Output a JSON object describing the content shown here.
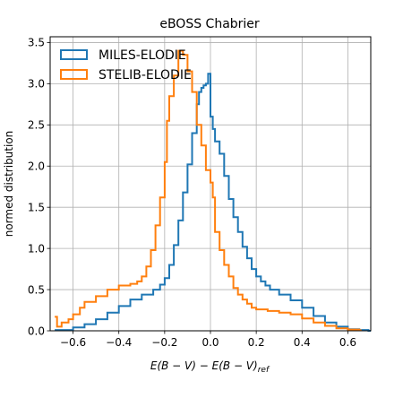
{
  "chart_data": {
    "type": "line",
    "title": "eBOSS Chabrier",
    "xlabel": "E(B − V) − E(B − V)",
    "xlabel_sub": "ref",
    "ylabel": "normed distribution",
    "xlim": [
      -0.7,
      0.7
    ],
    "ylim": [
      0,
      3.57
    ],
    "xticks": [
      -0.6,
      -0.4,
      -0.2,
      0.0,
      0.2,
      0.4,
      0.6
    ],
    "xtick_labels": [
      "−0.6",
      "−0.4",
      "−0.2",
      "0.0",
      "0.2",
      "0.4",
      "0.6"
    ],
    "yticks": [
      0.0,
      0.5,
      1.0,
      1.5,
      2.0,
      2.5,
      3.0,
      3.5
    ],
    "ytick_labels": [
      "0.0",
      "0.5",
      "1.0",
      "1.5",
      "2.0",
      "2.5",
      "3.0",
      "3.5"
    ],
    "grid": true,
    "legend_position": "top-left",
    "drawstyle": "steps",
    "series": [
      {
        "name": "MILES-ELODIE",
        "color": "#1f77b4",
        "x": [
          -0.68,
          -0.6,
          -0.55,
          -0.5,
          -0.45,
          -0.4,
          -0.35,
          -0.3,
          -0.25,
          -0.22,
          -0.2,
          -0.18,
          -0.16,
          -0.14,
          -0.12,
          -0.1,
          -0.08,
          -0.06,
          -0.05,
          -0.04,
          -0.03,
          -0.02,
          -0.01,
          0.0,
          0.01,
          0.02,
          0.04,
          0.06,
          0.08,
          0.1,
          0.12,
          0.14,
          0.16,
          0.18,
          0.2,
          0.22,
          0.24,
          0.26,
          0.3,
          0.35,
          0.4,
          0.45,
          0.5,
          0.55,
          0.6,
          0.65,
          0.69
        ],
        "y": [
          0.01,
          0.04,
          0.08,
          0.14,
          0.22,
          0.3,
          0.38,
          0.44,
          0.5,
          0.56,
          0.64,
          0.8,
          1.04,
          1.34,
          1.68,
          2.02,
          2.4,
          2.75,
          2.9,
          2.95,
          2.98,
          3.0,
          3.12,
          2.6,
          2.45,
          2.3,
          2.15,
          1.88,
          1.6,
          1.38,
          1.2,
          1.02,
          0.88,
          0.75,
          0.66,
          0.6,
          0.55,
          0.5,
          0.44,
          0.37,
          0.28,
          0.18,
          0.1,
          0.05,
          0.02,
          0.01,
          0.0
        ]
      },
      {
        "name": "STELIB-ELODIE",
        "color": "#ff7f0e",
        "x": [
          -0.68,
          -0.67,
          -0.65,
          -0.62,
          -0.6,
          -0.57,
          -0.55,
          -0.5,
          -0.45,
          -0.4,
          -0.35,
          -0.32,
          -0.3,
          -0.28,
          -0.26,
          -0.24,
          -0.22,
          -0.2,
          -0.19,
          -0.18,
          -0.16,
          -0.14,
          -0.12,
          -0.1,
          -0.08,
          -0.06,
          -0.04,
          -0.02,
          0.0,
          0.01,
          0.02,
          0.04,
          0.06,
          0.08,
          0.1,
          0.12,
          0.14,
          0.16,
          0.18,
          0.2,
          0.25,
          0.3,
          0.35,
          0.4,
          0.45,
          0.5,
          0.55,
          0.6,
          0.65
        ],
        "y": [
          0.17,
          0.05,
          0.1,
          0.14,
          0.2,
          0.28,
          0.35,
          0.42,
          0.5,
          0.55,
          0.57,
          0.6,
          0.66,
          0.78,
          0.98,
          1.28,
          1.62,
          2.05,
          2.55,
          2.85,
          3.1,
          3.4,
          3.35,
          3.15,
          2.9,
          2.5,
          2.25,
          1.95,
          1.8,
          1.62,
          1.2,
          0.98,
          0.8,
          0.66,
          0.52,
          0.44,
          0.38,
          0.33,
          0.28,
          0.26,
          0.24,
          0.22,
          0.2,
          0.15,
          0.1,
          0.06,
          0.03,
          0.015,
          0.005
        ]
      }
    ]
  }
}
